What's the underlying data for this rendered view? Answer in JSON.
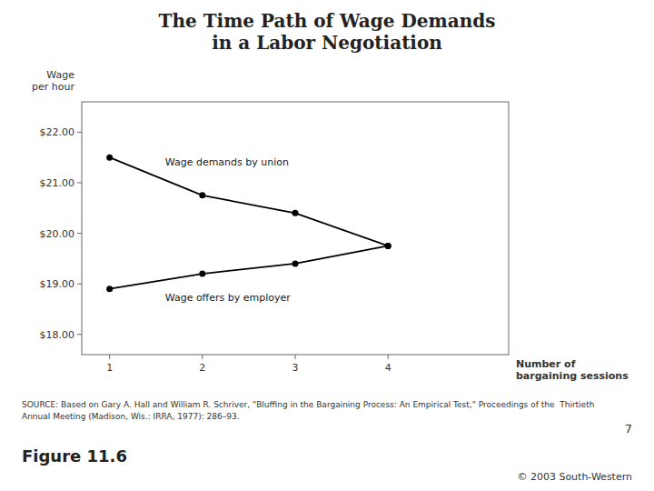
{
  "chart_data": {
    "type": "line",
    "title": "The Time Path of Wage Demands\nin a Labor Negotiation",
    "xlabel": "Number of\nbargaining sessions",
    "ylabel": "Wage\nper hour",
    "x": [
      1,
      2,
      3,
      4
    ],
    "series": [
      {
        "name": "Wage demands by union",
        "color": "#000000",
        "marker": "circle",
        "values": [
          21.5,
          20.75,
          20.4,
          19.75
        ]
      },
      {
        "name": "Wage offers by employer",
        "color": "#000000",
        "marker": "circle",
        "values": [
          18.9,
          19.2,
          19.4,
          19.75
        ]
      }
    ],
    "xlim": [
      0.7,
      5.3
    ],
    "xticks": [
      1,
      2,
      3,
      4
    ],
    "ylim": [
      17.6,
      22.6
    ],
    "yticks": [
      {
        "value": 18.0,
        "label": "$18.00"
      },
      {
        "value": 19.0,
        "label": "$19.00"
      },
      {
        "value": 20.0,
        "label": "$20.00"
      },
      {
        "value": 21.0,
        "label": "$21.00"
      },
      {
        "value": 22.0,
        "label": "$22.00"
      }
    ],
    "grid": false,
    "source": [
      "SOURCE: Based on Gary A. Hall and William R. Schriver, \"Bluffing in the Bargaining Process: An Empirical Test,\" Proceedings of the  Thirtieth",
      "Annual Meeting (Madison, Wis.: IRRA, 1977): 286–93."
    ],
    "figure_label": "Figure 11.6",
    "figure_number": "7",
    "copyright": "© 2003 South-Western"
  }
}
